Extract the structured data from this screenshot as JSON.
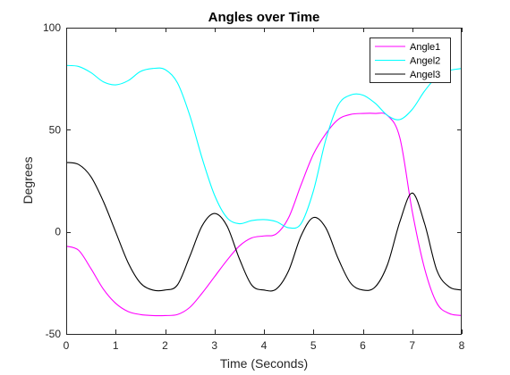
{
  "chart_data": {
    "type": "line",
    "title": "Angles over Time",
    "xlabel": "Time (Seconds)",
    "ylabel": "Degrees",
    "xlim": [
      0,
      8
    ],
    "ylim": [
      -50,
      100
    ],
    "xticks": [
      0,
      1,
      2,
      3,
      4,
      5,
      6,
      7,
      8
    ],
    "yticks": [
      -50,
      0,
      50,
      100
    ],
    "grid": false,
    "legend_position": "top-right",
    "series": [
      {
        "name": "Angle1",
        "color": "#ff00ff",
        "x": [
          0,
          0.25,
          0.5,
          0.75,
          1,
          1.25,
          1.5,
          1.75,
          2,
          2.25,
          2.5,
          2.75,
          3,
          3.25,
          3.5,
          3.75,
          4,
          4.25,
          4.5,
          4.75,
          5,
          5.25,
          5.5,
          5.75,
          6,
          6.25,
          6.5,
          6.75,
          7,
          7.25,
          7.5,
          7.75,
          8
        ],
        "y": [
          -7,
          -9,
          -18,
          -28,
          -35,
          -39,
          -40.5,
          -41,
          -41,
          -40.5,
          -37,
          -30,
          -22,
          -14,
          -7,
          -3,
          -2,
          -1,
          7,
          23,
          38,
          48,
          55,
          57.5,
          58,
          58,
          57,
          46,
          10,
          -18,
          -35,
          -40,
          -41
        ]
      },
      {
        "name": "Angel2",
        "color": "#00ffff",
        "x": [
          0,
          0.25,
          0.5,
          0.75,
          1,
          1.25,
          1.5,
          1.75,
          2,
          2.25,
          2.5,
          2.75,
          3,
          3.25,
          3.5,
          3.75,
          4,
          4.25,
          4.5,
          4.75,
          5,
          5.25,
          5.5,
          5.75,
          6,
          6.25,
          6.5,
          6.75,
          7,
          7.25,
          7.5,
          7.75,
          8
        ],
        "y": [
          81.5,
          81,
          78,
          73.5,
          72,
          74,
          78.5,
          80,
          79.5,
          73,
          57,
          36,
          18,
          7,
          4,
          5.5,
          6,
          5,
          2,
          4,
          20,
          45,
          62,
          67,
          67,
          63,
          57,
          55,
          60,
          69,
          76,
          79,
          80
        ]
      },
      {
        "name": "Angel3",
        "color": "#000000",
        "x": [
          0,
          0.25,
          0.5,
          0.75,
          1,
          1.25,
          1.5,
          1.75,
          2,
          2.25,
          2.5,
          2.75,
          3,
          3.25,
          3.5,
          3.75,
          4,
          4.25,
          4.5,
          4.75,
          5,
          5.25,
          5.5,
          5.75,
          6,
          6.25,
          6.5,
          6.75,
          7,
          7.25,
          7.5,
          7.75,
          8
        ],
        "y": [
          34,
          33,
          27,
          15,
          0,
          -15,
          -25,
          -28.5,
          -28.5,
          -26,
          -12,
          3,
          9,
          3,
          -13,
          -26,
          -28.5,
          -28,
          -19,
          -2,
          7,
          2,
          -13,
          -25,
          -28.5,
          -27,
          -16,
          5,
          19,
          4,
          -19,
          -27,
          -28.5
        ]
      }
    ]
  }
}
